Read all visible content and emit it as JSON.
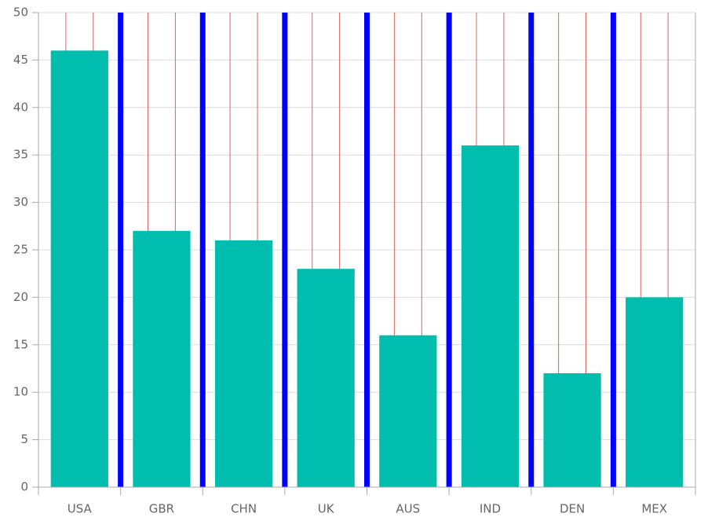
{
  "chart_data": {
    "type": "bar",
    "categories": [
      "USA",
      "GBR",
      "CHN",
      "UK",
      "AUS",
      "IND",
      "DEN",
      "MEX"
    ],
    "values": [
      46,
      27,
      26,
      23,
      16,
      36,
      12,
      20
    ],
    "color": "#00bdae",
    "ylim": [
      0,
      50
    ],
    "yticks": [
      0,
      5,
      10,
      15,
      20,
      25,
      30,
      35,
      40,
      45,
      50
    ],
    "grid": true
  }
}
